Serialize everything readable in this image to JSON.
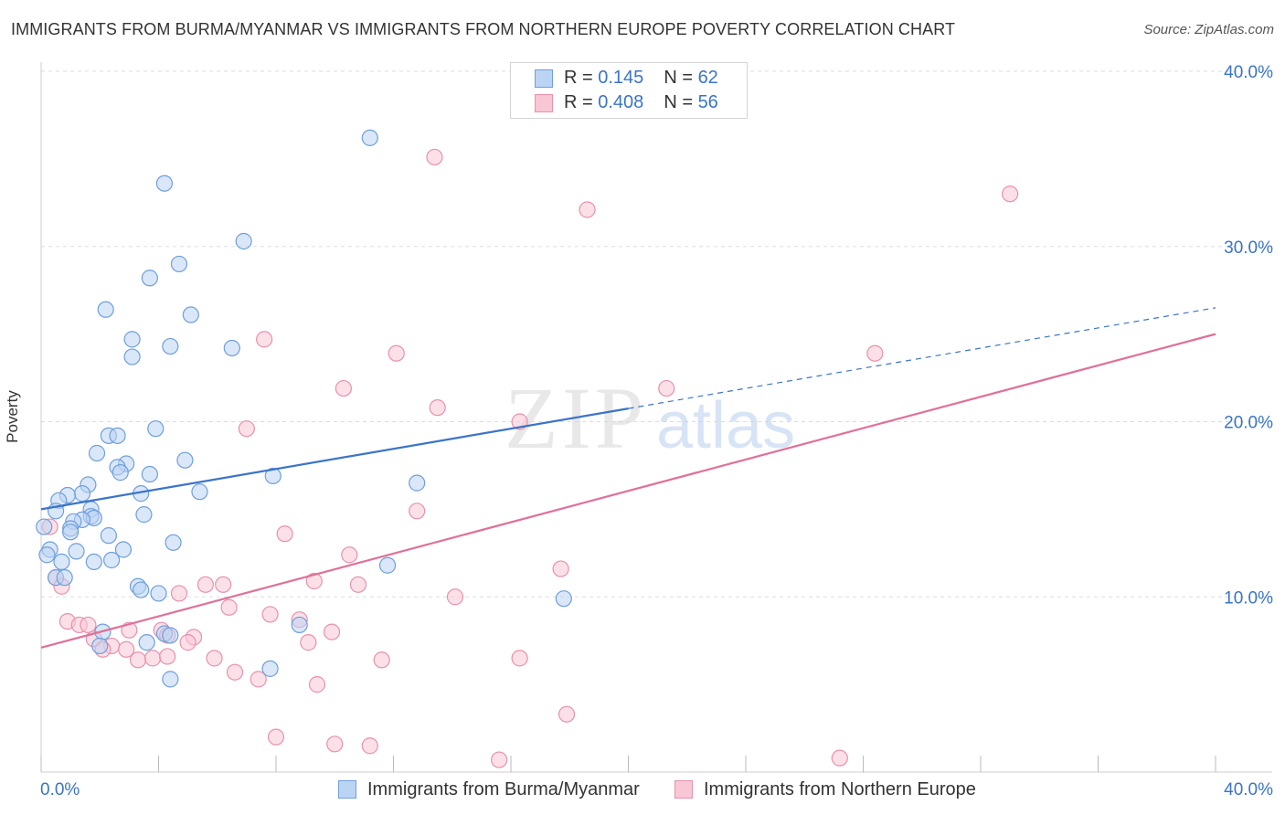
{
  "header": {
    "title": "IMMIGRANTS FROM BURMA/MYANMAR VS IMMIGRANTS FROM NORTHERN EUROPE POVERTY CORRELATION CHART",
    "source": "Source: ZipAtlas.com"
  },
  "watermark": {
    "zip": "ZIP",
    "atlas": "atlas"
  },
  "colors": {
    "blue_fill": "#bcd4f3",
    "blue_stroke": "#6e9fdc",
    "blue_line": "#3a74c9",
    "pink_fill": "#f9c6d5",
    "pink_stroke": "#e891ad",
    "pink_line": "#e0709a",
    "tick_text": "#3a74c9",
    "grid": "#dddddd"
  },
  "legend": {
    "rows": [
      {
        "r_label": "R = ",
        "r_value": "0.145",
        "n_label": "N = ",
        "n_value": "62"
      },
      {
        "r_label": "R = ",
        "r_value": "0.408",
        "n_label": "N = ",
        "n_value": "56"
      }
    ]
  },
  "bottom_legend": {
    "series1": "Immigrants from Burma/Myanmar",
    "series2": "Immigrants from Northern Europe"
  },
  "chart_data": {
    "type": "scatter",
    "title": "IMMIGRANTS FROM BURMA/MYANMAR VS IMMIGRANTS FROM NORTHERN EUROPE POVERTY CORRELATION CHART",
    "xlabel": "",
    "ylabel": "Poverty",
    "xlim": [
      0,
      40
    ],
    "ylim": [
      0,
      40
    ],
    "x_tick_labels": [
      {
        "value": 0,
        "label": "0.0%"
      },
      {
        "value": 40,
        "label": "40.0%"
      }
    ],
    "y_tick_labels": [
      {
        "value": 10,
        "label": "10.0%"
      },
      {
        "value": 20,
        "label": "20.0%"
      },
      {
        "value": 30,
        "label": "30.0%"
      },
      {
        "value": 40,
        "label": "40.0%"
      }
    ],
    "grid": true,
    "series": [
      {
        "name": "Immigrants from Burma/Myanmar",
        "color": "blue",
        "R": 0.145,
        "N": 62,
        "trend": {
          "x0": 0,
          "y0": 15.0,
          "x_solid_end": 20.0,
          "x1": 40,
          "y1": 26.5
        },
        "points": [
          [
            11.2,
            36.2
          ],
          [
            4.2,
            33.6
          ],
          [
            6.9,
            30.3
          ],
          [
            4.7,
            29.0
          ],
          [
            3.7,
            28.2
          ],
          [
            2.2,
            26.4
          ],
          [
            5.1,
            26.1
          ],
          [
            3.1,
            24.7
          ],
          [
            4.4,
            24.3
          ],
          [
            6.5,
            24.2
          ],
          [
            3.1,
            23.7
          ],
          [
            3.9,
            19.6
          ],
          [
            2.3,
            19.2
          ],
          [
            2.6,
            19.2
          ],
          [
            1.9,
            18.2
          ],
          [
            4.9,
            17.8
          ],
          [
            2.9,
            17.6
          ],
          [
            2.6,
            17.4
          ],
          [
            2.7,
            17.1
          ],
          [
            3.7,
            17.0
          ],
          [
            7.9,
            16.9
          ],
          [
            12.8,
            16.5
          ],
          [
            1.6,
            16.4
          ],
          [
            5.4,
            16.0
          ],
          [
            3.4,
            15.9
          ],
          [
            1.4,
            15.9
          ],
          [
            0.9,
            15.8
          ],
          [
            0.6,
            15.5
          ],
          [
            1.7,
            15.0
          ],
          [
            0.5,
            14.9
          ],
          [
            1.7,
            14.6
          ],
          [
            1.8,
            14.5
          ],
          [
            1.4,
            14.4
          ],
          [
            3.5,
            14.7
          ],
          [
            1.1,
            14.3
          ],
          [
            1.0,
            13.9
          ],
          [
            1.0,
            13.7
          ],
          [
            0.1,
            14.0
          ],
          [
            2.3,
            13.5
          ],
          [
            4.5,
            13.1
          ],
          [
            2.8,
            12.7
          ],
          [
            1.2,
            12.6
          ],
          [
            0.3,
            12.7
          ],
          [
            0.2,
            12.4
          ],
          [
            0.7,
            12.0
          ],
          [
            2.4,
            12.1
          ],
          [
            1.8,
            12.0
          ],
          [
            11.8,
            11.8
          ],
          [
            0.5,
            11.1
          ],
          [
            0.8,
            11.1
          ],
          [
            3.3,
            10.6
          ],
          [
            3.4,
            10.4
          ],
          [
            4.0,
            10.2
          ],
          [
            17.8,
            9.9
          ],
          [
            8.8,
            8.4
          ],
          [
            4.2,
            7.9
          ],
          [
            2.1,
            8.0
          ],
          [
            4.4,
            7.8
          ],
          [
            2.0,
            7.2
          ],
          [
            3.6,
            7.4
          ],
          [
            7.8,
            5.9
          ],
          [
            4.4,
            5.3
          ]
        ]
      },
      {
        "name": "Immigrants from Northern Europe",
        "color": "pink",
        "R": 0.408,
        "N": 56,
        "trend": {
          "x0": 0,
          "y0": 7.1,
          "x1": 40,
          "y1": 25.0
        },
        "points": [
          [
            13.4,
            35.1
          ],
          [
            18.6,
            32.1
          ],
          [
            33.0,
            33.0
          ],
          [
            7.6,
            24.7
          ],
          [
            12.1,
            23.9
          ],
          [
            28.4,
            23.9
          ],
          [
            10.3,
            21.9
          ],
          [
            21.3,
            21.9
          ],
          [
            13.5,
            20.8
          ],
          [
            16.3,
            20.0
          ],
          [
            7.0,
            19.6
          ],
          [
            12.8,
            14.9
          ],
          [
            8.3,
            13.6
          ],
          [
            0.3,
            14.0
          ],
          [
            10.5,
            12.4
          ],
          [
            17.7,
            11.6
          ],
          [
            0.5,
            11.1
          ],
          [
            0.7,
            10.6
          ],
          [
            9.3,
            10.9
          ],
          [
            5.6,
            10.7
          ],
          [
            6.2,
            10.7
          ],
          [
            10.8,
            10.7
          ],
          [
            4.7,
            10.2
          ],
          [
            14.1,
            10.0
          ],
          [
            6.4,
            9.4
          ],
          [
            7.8,
            9.0
          ],
          [
            8.8,
            8.7
          ],
          [
            0.9,
            8.6
          ],
          [
            1.3,
            8.4
          ],
          [
            1.6,
            8.4
          ],
          [
            3.0,
            8.1
          ],
          [
            4.1,
            8.1
          ],
          [
            9.9,
            8.0
          ],
          [
            4.3,
            7.8
          ],
          [
            5.2,
            7.7
          ],
          [
            1.8,
            7.6
          ],
          [
            5.0,
            7.4
          ],
          [
            9.1,
            7.4
          ],
          [
            2.4,
            7.2
          ],
          [
            2.1,
            7.0
          ],
          [
            16.3,
            6.5
          ],
          [
            3.3,
            6.4
          ],
          [
            3.8,
            6.5
          ],
          [
            5.9,
            6.5
          ],
          [
            11.6,
            6.4
          ],
          [
            6.6,
            5.7
          ],
          [
            7.4,
            5.3
          ],
          [
            9.4,
            5.0
          ],
          [
            17.9,
            3.3
          ],
          [
            8.0,
            2.0
          ],
          [
            10.0,
            1.6
          ],
          [
            11.2,
            1.5
          ],
          [
            15.6,
            0.7
          ],
          [
            27.2,
            0.8
          ],
          [
            4.3,
            6.6
          ],
          [
            2.9,
            7.0
          ]
        ]
      }
    ]
  }
}
